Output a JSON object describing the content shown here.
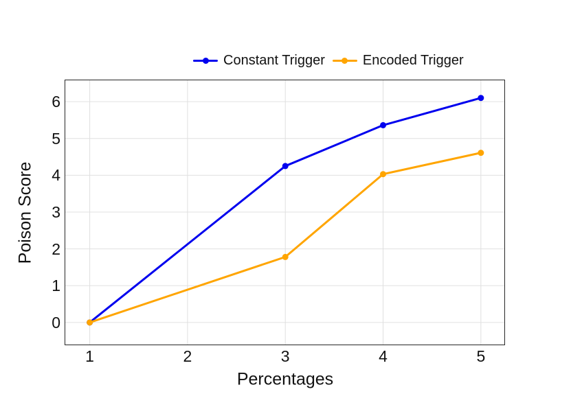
{
  "figure": {
    "background": "#ffffff"
  },
  "chart_data": {
    "type": "line",
    "title": "",
    "xlabel": "Percentages",
    "ylabel": "Poison Score",
    "x": [
      1,
      3,
      4,
      5
    ],
    "series": [
      {
        "name": "Constant Trigger",
        "color": "#0000ee",
        "marker": "circle",
        "values": [
          0.0,
          4.25,
          5.36,
          6.1
        ]
      },
      {
        "name": "Encoded Trigger",
        "color": "#ffa500",
        "marker": "circle",
        "values": [
          0.0,
          1.78,
          4.03,
          4.61
        ]
      }
    ],
    "xticks": [
      1,
      2,
      3,
      4,
      5
    ],
    "xtick_labels": [
      "1",
      "2",
      "3",
      "4",
      "5"
    ],
    "yticks": [
      0,
      1,
      2,
      3,
      4,
      5,
      6
    ],
    "ytick_labels": [
      "0",
      "1",
      "2",
      "3",
      "4",
      "5",
      "6"
    ],
    "xlim": [
      0.75,
      5.24
    ],
    "ylim": [
      -0.6,
      6.58
    ],
    "grid": true,
    "grid_color": "#e0e0e0",
    "axis_color": "#262626",
    "text_color": "#111111",
    "legend_position": "top-center",
    "line_width": 3,
    "marker_radius": 4.5
  }
}
